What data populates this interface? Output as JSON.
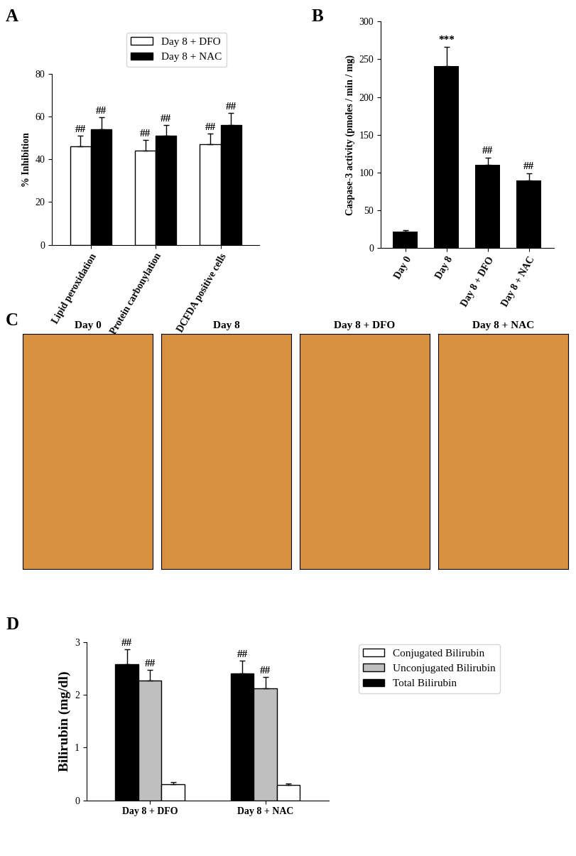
{
  "chart_data": [
    {
      "panel": "A",
      "type": "bar",
      "categories": [
        "Lipid peroxidation",
        "Protein carbonylation",
        "DCFDA positive cells"
      ],
      "series": [
        {
          "name": "Day 8 + DFO",
          "color": "#ffffff",
          "values": [
            46,
            44,
            47
          ],
          "errors": [
            5,
            5,
            5
          ],
          "annotations": [
            "##",
            "##",
            "##"
          ]
        },
        {
          "name": "Day 8 + NAC",
          "color": "#000000",
          "values": [
            54,
            51,
            56
          ],
          "errors": [
            5.5,
            5,
            5.5
          ],
          "annotations": [
            "##",
            "##",
            "##"
          ]
        }
      ],
      "y_label": "% Inhibition",
      "ylim": [
        0,
        80
      ],
      "yticks": [
        0,
        20,
        40,
        60,
        80
      ],
      "legend": "top"
    },
    {
      "panel": "B",
      "type": "bar",
      "categories": [
        "Day 0",
        "Day 8",
        "Day 8 + DFO",
        "Day 8 + NAC"
      ],
      "values": [
        22,
        241,
        110,
        90
      ],
      "errors": [
        2,
        25,
        10,
        9
      ],
      "annotations": [
        null,
        "***",
        "##",
        "##"
      ],
      "color": "#000000",
      "y_label": "Caspase-3 activity (pmoles / min / mg)",
      "ylim": [
        0,
        300
      ],
      "yticks": [
        0,
        50,
        100,
        150,
        200,
        250,
        300
      ]
    },
    {
      "panel": "C",
      "type": "image",
      "titles": [
        "Day 0",
        "Day 8",
        "Day 8 + DFO",
        "Day 8 + NAC"
      ],
      "color": "#d8913f"
    },
    {
      "panel": "D",
      "type": "bar",
      "categories": [
        "Day 8 + DFO",
        "Day 8 + NAC"
      ],
      "series": [
        {
          "name": "Total Bilirubin",
          "color": "#000000",
          "values": [
            2.58,
            2.4
          ],
          "errors": [
            0.28,
            0.25
          ],
          "annotations": [
            "##",
            "##"
          ]
        },
        {
          "name": "Unconjugated Bilirubin",
          "color": "#bfbfbf",
          "values": [
            2.27,
            2.12
          ],
          "errors": [
            0.2,
            0.22
          ],
          "annotations": [
            "##",
            "##"
          ]
        },
        {
          "name": "Conjugated Bilirubin",
          "color": "#ffffff",
          "values": [
            0.31,
            0.29
          ],
          "errors": [
            0.03,
            0.03
          ],
          "annotations": [
            null,
            null
          ]
        }
      ],
      "y_label": "Bilirubin (mg/dl)",
      "ylim": [
        0,
        3
      ],
      "yticks": [
        0,
        1,
        2,
        3
      ],
      "legend": "right"
    }
  ]
}
